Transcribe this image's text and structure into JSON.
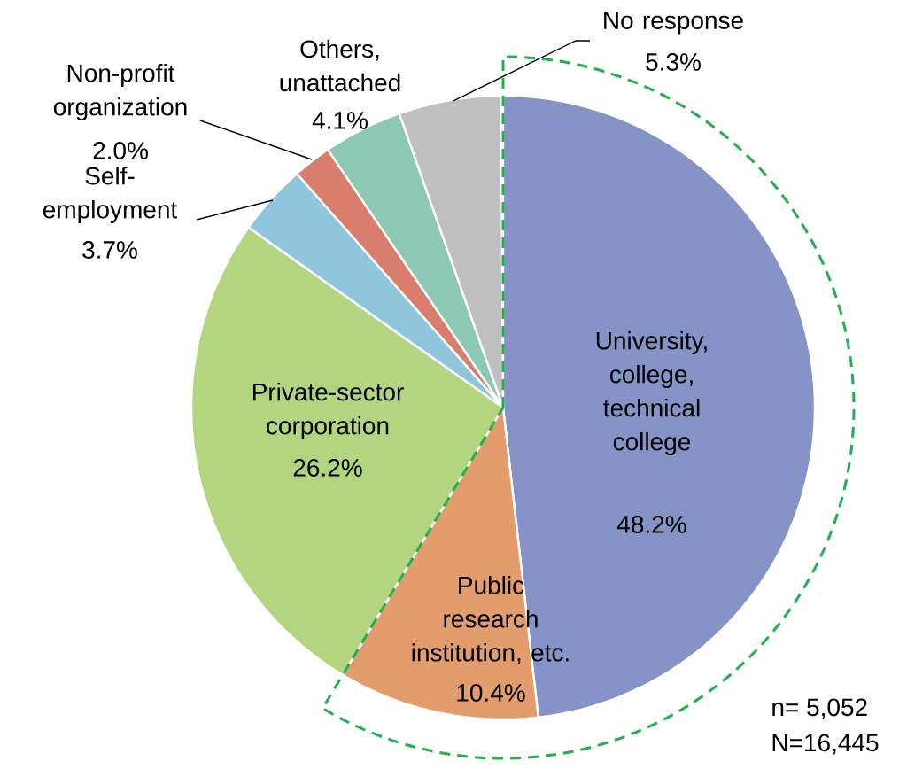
{
  "chart_data": {
    "type": "pie",
    "categories": [
      "University, college, technical college",
      "Public research institution, etc.",
      "Private-sector corporation",
      "Self-employment",
      "Non-profit organization",
      "Others, unattached",
      "No response"
    ],
    "values": [
      48.2,
      10.4,
      26.2,
      3.7,
      2.0,
      4.1,
      5.3
    ],
    "value_labels": [
      "48.2%",
      "10.4%",
      "26.2%",
      "3.7%",
      "2.0%",
      "4.1%",
      "5.3%"
    ],
    "colors": [
      "#8593c6",
      "#e39c6c",
      "#b3d57f",
      "#8fc6dc",
      "#d97d6c",
      "#8dc8b5",
      "#bfbfbf"
    ],
    "annotations": [
      "n= 5,052",
      "N=16,445"
    ]
  }
}
